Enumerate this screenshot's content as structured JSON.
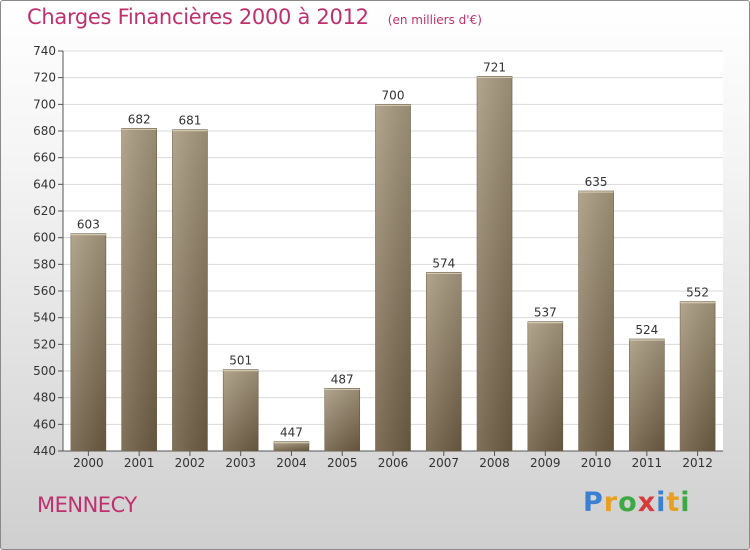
{
  "header": {
    "title": "Charges Financières 2000 à 2012",
    "unit": "(en milliers d'€)"
  },
  "footer": {
    "city": "MENNECY",
    "brand": "Proxiti",
    "brand_letters": [
      {
        "ch": "P",
        "color": "#3a7fd0"
      },
      {
        "ch": "r",
        "color": "#e8a020"
      },
      {
        "ch": "o",
        "color": "#3ea845"
      },
      {
        "ch": "x",
        "color": "#d83a3a"
      },
      {
        "ch": "i",
        "color": "#3a7fd0"
      },
      {
        "ch": "t",
        "color": "#e8a020"
      },
      {
        "ch": "i",
        "color": "#3ea845"
      }
    ]
  },
  "colors": {
    "accent": "#c0306e",
    "bar_light": "#a89a80",
    "bar_dark": "#6e5d44",
    "grid": "#dadada",
    "text": "#333333"
  },
  "chart_data": {
    "type": "bar",
    "categories": [
      "2000",
      "2001",
      "2002",
      "2003",
      "2004",
      "2005",
      "2006",
      "2007",
      "2008",
      "2009",
      "2010",
      "2011",
      "2012"
    ],
    "values": [
      603,
      682,
      681,
      501,
      447,
      487,
      700,
      574,
      721,
      537,
      635,
      524,
      552
    ],
    "ylim": [
      440,
      740
    ],
    "yticks": [
      440,
      460,
      480,
      500,
      520,
      540,
      560,
      580,
      600,
      620,
      640,
      660,
      680,
      700,
      720,
      740
    ],
    "grid": true
  }
}
